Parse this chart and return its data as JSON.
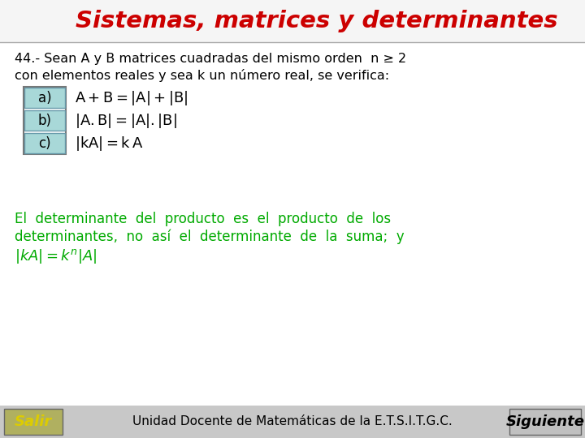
{
  "title": "Sistemas, matrices y determinantes",
  "title_color": "#CC0000",
  "bg_color": "#FFFFFF",
  "header_bg": "#F5F5F5",
  "header_line_color": "#AAAAAA",
  "problem_line1": "44.- Sean A y B matrices cuadradas del mismo orden  n ≥ 2",
  "problem_line2": "con elementos reales y sea k un número real, se verifica:",
  "items": [
    "a)",
    "b)",
    "c)"
  ],
  "item_box_color": "#A8D8D8",
  "item_box_edge": "#6699AA",
  "outer_box_edge": "#777777",
  "formula_a": "A + B = |A| + |B|",
  "formula_b": "|A.B| = |A|.|B|",
  "formula_c": "|kA| = k A",
  "green_line1": "El  determinante  del  producto  es  el  producto  de  los",
  "green_line2": "determinantes,  no  así  el  determinante  de  la  suma;  y",
  "green_line3": "|kA| = k",
  "green_color": "#00AA00",
  "footer_bg": "#C8C8C8",
  "footer_text": "Unidad Docente de Matemáticas de la E.T.S.I.T.G.C.",
  "salir_text": "Salir",
  "salir_color": "#DDCC00",
  "salir_bg": "#B0B060",
  "siguiente_text": "Siguiente",
  "siguiente_bg": "#C0C0C0",
  "siguiente_color": "#000000"
}
